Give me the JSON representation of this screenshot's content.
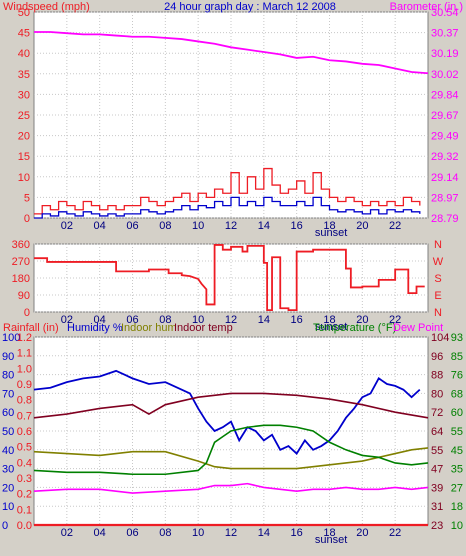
{
  "chart_data": [
    {
      "type": "line",
      "title": "24 hour graph day : March 12 2008",
      "left_axis_label": "Windspeed (mph)",
      "right_axis_label": "Barometer (in.)",
      "x_ticks": [
        "02",
        "04",
        "06",
        "08",
        "10",
        "12",
        "14",
        "16",
        "18",
        "20",
        "22"
      ],
      "x_annotation": "sunset",
      "x_range_hours": [
        0,
        24
      ],
      "left_ticks": [
        0,
        5,
        10,
        15,
        20,
        25,
        30,
        35,
        40,
        45,
        50
      ],
      "left_range": [
        0,
        50
      ],
      "right_ticks": [
        "28.79",
        "28.97",
        "29.14",
        "29.32",
        "29.49",
        "29.67",
        "29.84",
        "30.02",
        "30.19",
        "30.37",
        "30.54"
      ],
      "right_range": [
        28.79,
        30.54
      ],
      "grid": true,
      "colors": {
        "wind_gust": "#ee1c24",
        "wind_avg": "#0000cc",
        "barometer": "#ff00ff",
        "left_axis": "#ee1c24",
        "right_axis": "#ff00ff",
        "title": "#0000cc"
      },
      "series": [
        {
          "key": "barometer",
          "axis": "right",
          "color": "#ff00ff",
          "x": [
            0,
            1,
            2,
            3,
            4,
            5,
            6,
            7,
            8,
            9,
            10,
            11,
            12,
            13,
            14,
            15,
            16,
            17,
            18,
            19,
            20,
            21,
            22,
            23,
            24
          ],
          "y": [
            30.37,
            30.37,
            30.36,
            30.35,
            30.35,
            30.34,
            30.33,
            30.33,
            30.32,
            30.31,
            30.29,
            30.27,
            30.24,
            30.22,
            30.2,
            30.18,
            30.15,
            30.16,
            30.13,
            30.12,
            30.1,
            30.09,
            30.06,
            30.03,
            30.02
          ]
        },
        {
          "key": "wind_gust",
          "axis": "left",
          "color": "#ee1c24",
          "x": [
            0,
            0.5,
            1,
            1.5,
            2,
            2.5,
            3,
            3.5,
            4,
            4.5,
            5,
            5.5,
            6,
            6.5,
            7,
            7.5,
            8,
            8.5,
            9,
            9.5,
            10,
            10.5,
            11,
            11.5,
            12,
            12.5,
            13,
            13.5,
            14,
            14.5,
            15,
            15.5,
            16,
            16.5,
            17,
            17.5,
            18,
            18.5,
            19,
            19.5,
            20,
            20.5,
            21,
            21.5,
            22,
            22.5,
            23,
            23.5
          ],
          "y": [
            1,
            3,
            2,
            4,
            3,
            2,
            4,
            3,
            2,
            3,
            2,
            3,
            3,
            5,
            4,
            3,
            4,
            5,
            6,
            4,
            6,
            5,
            7,
            6,
            11,
            6,
            10,
            7,
            12,
            8,
            6,
            7,
            9,
            6,
            11,
            7,
            5,
            4,
            5,
            4,
            3,
            4,
            3,
            4,
            3,
            5,
            4,
            3
          ]
        },
        {
          "key": "wind_avg",
          "axis": "left",
          "color": "#0000cc",
          "x": [
            0,
            0.5,
            1,
            1.5,
            2,
            2.5,
            3,
            3.5,
            4,
            4.5,
            5,
            5.5,
            6,
            6.5,
            7,
            7.5,
            8,
            8.5,
            9,
            9.5,
            10,
            10.5,
            11,
            11.5,
            12,
            12.5,
            13,
            13.5,
            14,
            14.5,
            15,
            15.5,
            16,
            16.5,
            17,
            17.5,
            18,
            18.5,
            19,
            19.5,
            20,
            20.5,
            21,
            21.5,
            22,
            22.5,
            23,
            23.5
          ],
          "y": [
            0,
            1,
            0.5,
            1.5,
            1,
            0.5,
            1.5,
            1,
            0.5,
            1,
            0.5,
            1,
            1,
            2,
            1.5,
            1,
            1.5,
            2,
            3,
            2,
            3,
            2.5,
            4,
            3,
            5,
            3,
            4,
            3,
            5,
            4,
            3,
            3,
            4,
            3,
            5,
            3,
            2,
            1.5,
            2,
            1.5,
            1,
            2,
            1,
            2,
            1.5,
            2,
            1.5,
            1
          ]
        }
      ]
    },
    {
      "type": "line",
      "title": "",
      "left_ticks": [
        0,
        90,
        180,
        270,
        360
      ],
      "left_range": [
        0,
        360
      ],
      "right_ticks": [
        "N",
        "W",
        "S",
        "E",
        "N"
      ],
      "x_ticks": [
        "02",
        "04",
        "06",
        "08",
        "10",
        "12",
        "14",
        "16",
        "18",
        "20",
        "22"
      ],
      "x_annotation": "sunset",
      "x_range_hours": [
        0,
        24
      ],
      "grid": true,
      "colors": {
        "direction": "#ee1c24",
        "left_axis": "#ee1c24",
        "right_axis": "#ee1c24"
      },
      "series": [
        {
          "key": "wind_direction",
          "axis": "left",
          "color": "#ee1c24",
          "x": [
            0,
            0.8,
            0.8,
            5,
            5,
            7,
            7,
            8.2,
            8.2,
            9,
            9,
            9.5,
            10,
            10.2,
            10.5,
            10.5,
            11,
            11,
            11.5,
            11.5,
            12,
            12,
            12.7,
            12.7,
            13,
            13,
            14,
            14,
            14.2,
            14.2,
            14.5,
            14.5,
            15,
            15,
            15.5,
            15.5,
            16,
            16,
            17,
            17,
            19,
            19,
            19.3,
            19.3,
            20,
            20,
            21,
            21,
            22,
            22,
            22.8,
            22.8,
            23.3,
            23.3,
            23.8
          ],
          "y": [
            285,
            285,
            265,
            265,
            215,
            215,
            225,
            225,
            205,
            205,
            195,
            190,
            175,
            150,
            120,
            40,
            40,
            355,
            355,
            330,
            330,
            345,
            345,
            320,
            320,
            350,
            350,
            260,
            260,
            10,
            10,
            290,
            290,
            20,
            20,
            10,
            10,
            320,
            320,
            330,
            330,
            230,
            230,
            130,
            130,
            135,
            135,
            170,
            170,
            225,
            225,
            100,
            100,
            135,
            135
          ]
        }
      ]
    },
    {
      "type": "line",
      "title": "",
      "legend_items": [
        "Rainfall (in)",
        "Humidity %",
        "Indoor hum",
        "Indoor temp",
        "Temperature (°F)",
        "Dew Point"
      ],
      "left_ticks_rain": [
        "0.0",
        "0.1",
        "0.2",
        "0.3",
        "0.4",
        "0.5",
        "0.6",
        "0.7",
        "0.8",
        "0.9",
        "1.0",
        "1.1",
        "1.2"
      ],
      "left_ticks_humidity": [
        0,
        10,
        20,
        30,
        40,
        50,
        60,
        70,
        80,
        90,
        100
      ],
      "right_ticks_temperature": [
        23,
        31,
        39,
        47,
        55,
        64,
        72,
        80,
        88,
        96,
        104
      ],
      "right_ticks_dewpoint": [
        10,
        18,
        27,
        35,
        45,
        55,
        60,
        68,
        76,
        85,
        93
      ],
      "x_ticks": [
        "02",
        "04",
        "06",
        "08",
        "10",
        "12",
        "14",
        "16",
        "18",
        "20",
        "22"
      ],
      "x_annotation": "sunset",
      "x_range_hours": [
        0,
        24
      ],
      "humidity_range": [
        0,
        100
      ],
      "grid": true,
      "colors": {
        "rainfall": "#ee1c24",
        "humidity": "#0000cc",
        "indoor_hum": "#808000",
        "indoor_temp": "#800020",
        "temperature": "#008000",
        "dew_point": "#ff00ff"
      },
      "series": [
        {
          "key": "humidity",
          "color": "#0000cc",
          "x": [
            0,
            1,
            2,
            3,
            4,
            5,
            6,
            7,
            8,
            9,
            9.5,
            10,
            10.5,
            11,
            11.5,
            12,
            12.5,
            13,
            13.5,
            14,
            14.5,
            15,
            15.5,
            16,
            16.5,
            17,
            17.5,
            18,
            18.5,
            19,
            19.5,
            20,
            20.5,
            21,
            21.5,
            22,
            22.5,
            23,
            23.5
          ],
          "y": [
            72,
            73,
            76,
            78,
            79,
            82,
            78,
            75,
            76,
            72,
            70,
            62,
            55,
            50,
            52,
            55,
            45,
            52,
            50,
            45,
            48,
            40,
            42,
            38,
            45,
            40,
            42,
            45,
            50,
            57,
            62,
            68,
            70,
            78,
            75,
            74,
            72,
            68,
            72
          ]
        },
        {
          "key": "indoor_temp",
          "color": "#800020",
          "x": [
            0,
            2,
            4,
            6,
            7,
            8,
            9,
            10,
            11,
            12,
            14,
            16,
            18,
            20,
            22,
            24
          ],
          "y": [
            57,
            59,
            62,
            64,
            59,
            64,
            66,
            68,
            69,
            70,
            70,
            69,
            67,
            64,
            60,
            57
          ]
        },
        {
          "key": "indoor_hum",
          "color": "#808000",
          "x": [
            0,
            2,
            4,
            6,
            8,
            10,
            11,
            12,
            14,
            16,
            18,
            19,
            20,
            21,
            22,
            23,
            24
          ],
          "y": [
            39,
            38,
            37,
            39,
            39,
            34,
            31,
            30,
            30,
            30,
            32,
            33,
            34,
            36,
            38,
            40,
            41
          ]
        },
        {
          "key": "temperature",
          "color": "#008000",
          "x": [
            0,
            2,
            4,
            6,
            8,
            10,
            10.5,
            11,
            11.5,
            12,
            13,
            14,
            15,
            16,
            17,
            18,
            19,
            20,
            21,
            22,
            23,
            24
          ],
          "y": [
            29,
            28,
            28,
            27,
            27,
            29,
            33,
            44,
            47,
            50,
            52,
            53,
            53,
            52,
            50,
            44,
            40,
            37,
            36,
            33,
            32,
            33
          ]
        },
        {
          "key": "dew_point",
          "color": "#ff00ff",
          "x": [
            0,
            2,
            4,
            6,
            8,
            10,
            11,
            12,
            13,
            14,
            15,
            16,
            17,
            18,
            19,
            20,
            21,
            22,
            23,
            24
          ],
          "y": [
            18,
            19,
            19,
            17,
            18,
            19,
            21,
            21,
            22,
            20,
            19,
            18,
            19,
            19,
            20,
            19,
            19,
            20,
            19,
            20
          ]
        },
        {
          "key": "rainfall",
          "color": "#ee1c24",
          "x": [
            0,
            24
          ],
          "y": [
            0,
            0
          ]
        }
      ]
    }
  ]
}
